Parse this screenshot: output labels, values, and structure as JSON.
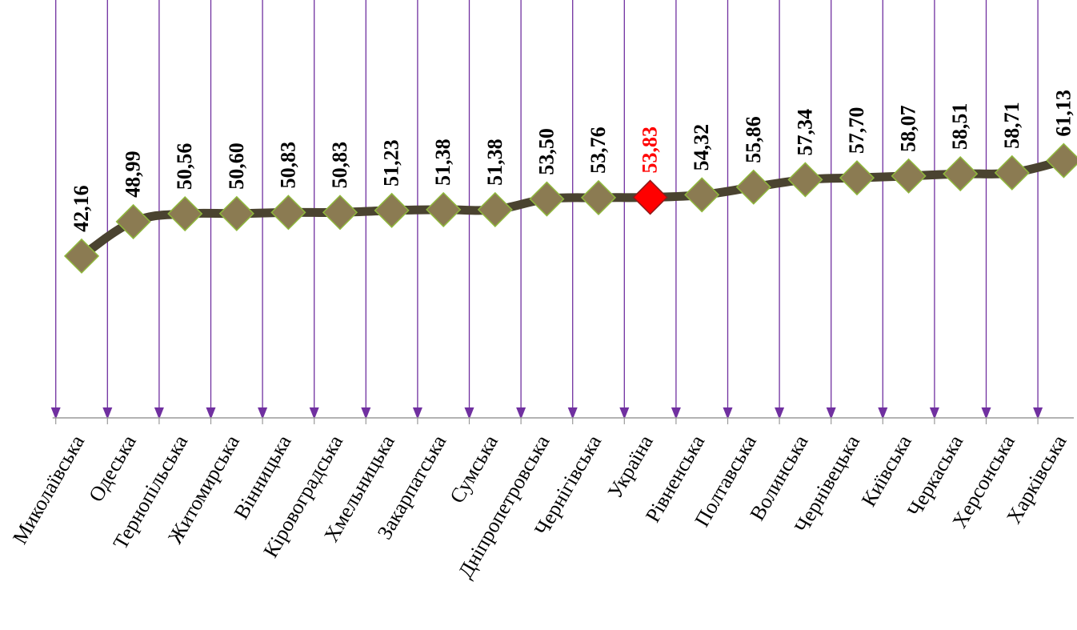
{
  "chart_data": {
    "type": "line",
    "title": "",
    "xlabel": "",
    "ylabel": "",
    "categories": [
      "Миколаївська",
      "Одеська",
      "Тернопільська",
      "Житомирська",
      "Вінницька",
      "Кіровоградська",
      "Хмельницька",
      "Закарпатська",
      "Сумська",
      "Дніпропетровська",
      "Чернігівська",
      "Україна",
      "Рівненська",
      "Полтавська",
      "Волинська",
      "Чернівецька",
      "Київська",
      "Черкаська",
      "Херсонська",
      "Харківська"
    ],
    "series": [
      {
        "values": [
          42.16,
          48.99,
          50.56,
          50.6,
          50.83,
          50.83,
          51.23,
          51.38,
          51.38,
          53.5,
          53.76,
          53.83,
          54.32,
          55.86,
          57.34,
          57.7,
          58.07,
          58.51,
          58.71,
          61.13
        ]
      }
    ],
    "value_labels": [
      "42,16",
      "48,99",
      "50,56",
      "50,60",
      "50,83",
      "50,83",
      "51,23",
      "51,38",
      "51,38",
      "53,50",
      "53,76",
      "53,83",
      "54,32",
      "55,86",
      "57,34",
      "57,70",
      "58,07",
      "58,51",
      "58,71",
      "61,13"
    ],
    "highlight_category": "Україна",
    "ylim": [
      10,
      80
    ],
    "grid": false,
    "legend": "none",
    "colors": {
      "line": "#4a4330",
      "marker": "#8b7b52",
      "marker_edge": "#8fb83c",
      "highlight_marker": "#ff0000",
      "highlight_label": "#ff0000",
      "label": "#000000",
      "drop_line": "#7030a0",
      "axis": "#9a9a9a"
    }
  }
}
